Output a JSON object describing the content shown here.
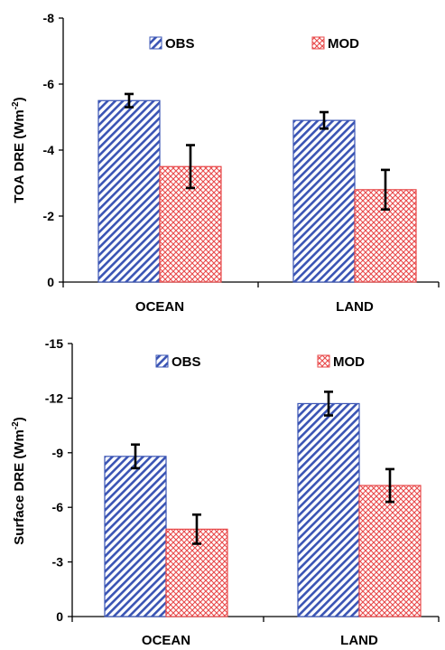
{
  "chart_data": [
    {
      "type": "bar",
      "categories": [
        "OCEAN",
        "LAND"
      ],
      "ylabel": "TOA DRE (Wm",
      "ylabel_sup": "-2",
      "ylabel_end": ")",
      "ylim": [
        0,
        -8
      ],
      "yticks": [
        "0",
        "-2",
        "-4",
        "-6",
        "-8"
      ],
      "legend_position": "top",
      "series": [
        {
          "name": "OBS",
          "values": [
            -5.5,
            -4.9
          ],
          "errors": [
            0.2,
            0.25
          ],
          "color": "#3a54b4",
          "pattern": "diagonal-stripes"
        },
        {
          "name": "MOD",
          "values": [
            -3.5,
            -2.8
          ],
          "errors": [
            0.65,
            0.6
          ],
          "color": "#e8494a",
          "pattern": "crosshatch"
        }
      ]
    },
    {
      "type": "bar",
      "categories": [
        "OCEAN",
        "LAND"
      ],
      "ylabel": "Surface DRE (Wm",
      "ylabel_sup": "-2",
      "ylabel_end": ")",
      "ylim": [
        0,
        -15
      ],
      "yticks": [
        "0",
        "-3",
        "-6",
        "-9",
        "-12",
        "-15"
      ],
      "legend_position": "top",
      "series": [
        {
          "name": "OBS",
          "values": [
            -8.8,
            -11.7
          ],
          "errors": [
            0.65,
            0.65
          ],
          "color": "#3a54b4",
          "pattern": "diagonal-stripes"
        },
        {
          "name": "MOD",
          "values": [
            -4.8,
            -7.2
          ],
          "errors": [
            0.8,
            0.9
          ],
          "color": "#e8494a",
          "pattern": "crosshatch"
        }
      ]
    }
  ]
}
